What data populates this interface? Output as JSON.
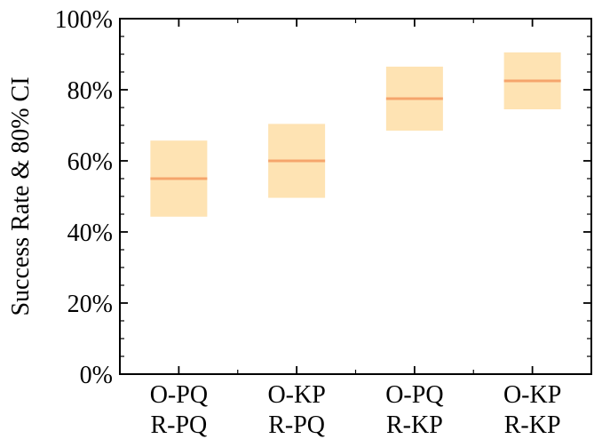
{
  "chart_data": {
    "type": "box",
    "ylabel": "Success Rate & 80% CI",
    "ylim": [
      0,
      100
    ],
    "y_ticks": [
      {
        "value": 0,
        "label": "0%"
      },
      {
        "value": 20,
        "label": "20%"
      },
      {
        "value": 40,
        "label": "40%"
      },
      {
        "value": 60,
        "label": "60%"
      },
      {
        "value": 80,
        "label": "80%"
      },
      {
        "value": 100,
        "label": "100%"
      }
    ],
    "categories": [
      {
        "line1": "O-PQ",
        "line2": "R-PQ"
      },
      {
        "line1": "O-KP",
        "line2": "R-PQ"
      },
      {
        "line1": "O-PQ",
        "line2": "R-KP"
      },
      {
        "line1": "O-KP",
        "line2": "R-KP"
      }
    ],
    "values": [
      55,
      60,
      77.5,
      82.5
    ],
    "ci_low": [
      44.3,
      49.6,
      68.5,
      74.5
    ],
    "ci_high": [
      65.7,
      70.4,
      86.5,
      90.5
    ],
    "grid": false,
    "colors": {
      "box_fill": "#fee3b3",
      "median_line": "#f5a56c",
      "axis": "#000000"
    }
  }
}
